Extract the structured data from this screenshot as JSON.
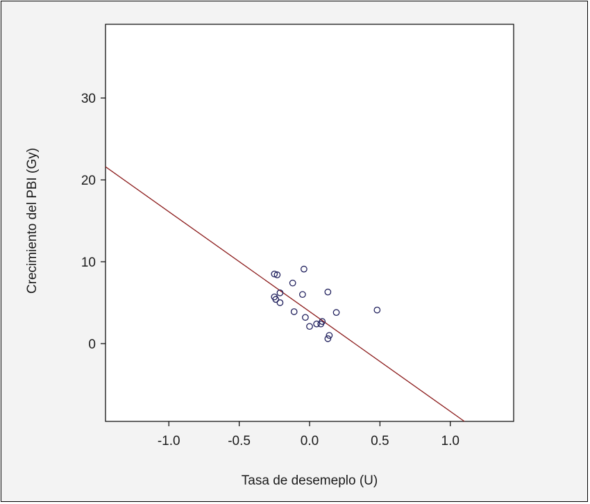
{
  "chart_data": {
    "type": "scatter",
    "xlabel": "Tasa de desemeplo (U)",
    "ylabel": "Crecimiento del PBI (Gy)",
    "xlim": [
      -1.45,
      1.45
    ],
    "ylim": [
      -9.5,
      39
    ],
    "xticks": [
      -1.0,
      -0.5,
      0.0,
      0.5,
      1.0
    ],
    "xtick_labels": [
      "-1.0",
      "-0.5",
      "0.0",
      "0.5",
      "1.0"
    ],
    "yticks": [
      0,
      10,
      20,
      30
    ],
    "ytick_labels": [
      "0",
      "10",
      "20",
      "30"
    ],
    "grid": false,
    "points": [
      {
        "x": -0.25,
        "y": 8.5
      },
      {
        "x": -0.23,
        "y": 8.4
      },
      {
        "x": -0.04,
        "y": 9.1
      },
      {
        "x": -0.12,
        "y": 7.4
      },
      {
        "x": 0.13,
        "y": 6.3
      },
      {
        "x": -0.21,
        "y": 6.2
      },
      {
        "x": -0.05,
        "y": 6.0
      },
      {
        "x": -0.25,
        "y": 5.7
      },
      {
        "x": -0.24,
        "y": 5.4
      },
      {
        "x": -0.21,
        "y": 5.0
      },
      {
        "x": 0.48,
        "y": 4.1
      },
      {
        "x": -0.11,
        "y": 3.9
      },
      {
        "x": 0.19,
        "y": 3.8
      },
      {
        "x": -0.03,
        "y": 3.2
      },
      {
        "x": 0.09,
        "y": 2.7
      },
      {
        "x": 0.08,
        "y": 2.4
      },
      {
        "x": 0.05,
        "y": 2.4
      },
      {
        "x": 0.0,
        "y": 2.1
      },
      {
        "x": 0.14,
        "y": 1.0
      },
      {
        "x": 0.13,
        "y": 0.6
      }
    ],
    "fit_line": {
      "x": [
        -1.45,
        1.1
      ],
      "y": [
        21.6,
        -9.5
      ]
    },
    "colors": {
      "points": "#1f1f5c",
      "fit_line": "#8b1a1a",
      "plot_bg": "#ffffff",
      "figure_bg": "#f3f3f3"
    }
  }
}
